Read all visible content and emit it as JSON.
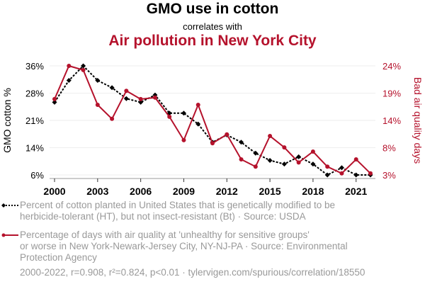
{
  "header": {
    "title": "GMO use in cotton",
    "subtitle": "correlates with",
    "title2": "Air pollution in New York City"
  },
  "colors": {
    "series1": "#000000",
    "series2": "#b5122c",
    "grid": "#eeeeee",
    "legend_text": "#999999"
  },
  "legend": {
    "series1": "Percent of cotton planted in United States that is genetically modified to be herbicide-tolerant (HT), but not insect-resistant (Bt) · Source: USDA",
    "series1_lines": [
      "Percent of cotton planted in United States that is genetically modified to be",
      "herbicide-tolerant (HT), but not insect-resistant (Bt) · Source: USDA"
    ],
    "series2_lines": [
      "Percentage of days with air quality at 'unhealthy for sensitive groups'",
      "or worse in New York-Newark-Jersey City, NY-NJ-PA · Source: Environmental",
      "Protection Agency"
    ]
  },
  "footer": "2000-2022, r=0.908, r²=0.824, p<0.01 · tylervigen.com/spurious/correlation/18550",
  "chart_data": {
    "type": "line",
    "title": "GMO use in cotton correlates with Air pollution in New York City",
    "x": [
      2000,
      2001,
      2002,
      2003,
      2004,
      2005,
      2006,
      2007,
      2008,
      2009,
      2010,
      2011,
      2012,
      2013,
      2014,
      2015,
      2016,
      2017,
      2018,
      2019,
      2020,
      2021,
      2022
    ],
    "xticks": [
      2000,
      2003,
      2006,
      2009,
      2012,
      2015,
      2018,
      2021
    ],
    "xlim": [
      2000,
      2022
    ],
    "ylabel_left": "GMO cotton %",
    "ylabel_right": "Bad air quality days",
    "ylim_left": [
      6,
      36
    ],
    "ylim_right": [
      3,
      24
    ],
    "yticks_left": [
      "36%",
      "28%",
      "21%",
      "14%",
      "6%"
    ],
    "yticks_right": [
      "24%",
      "19%",
      "14%",
      "8%",
      "3%"
    ],
    "grid": true,
    "series": [
      {
        "name": "Percent of cotton planted in United States that is genetically modified to be herbicide-tolerant (HT), but not insect-resistant (Bt)",
        "axis": "left",
        "style": "dotted",
        "values": [
          26,
          32,
          36,
          32,
          30,
          27,
          26,
          28,
          23,
          23,
          20,
          15,
          17,
          15,
          12,
          10,
          9,
          11,
          9,
          6,
          8,
          6,
          6
        ]
      },
      {
        "name": "Percentage of days with air quality at 'unhealthy for sensitive groups' or worse in New York-Newark-Jersey City, NY-NJ-PA",
        "axis": "right",
        "style": "solid",
        "values": [
          17.6,
          24.0,
          23.2,
          16.5,
          13.8,
          19.2,
          17.6,
          17.9,
          14.2,
          9.7,
          16.5,
          9.1,
          10.8,
          6.0,
          4.6,
          10.5,
          8.3,
          5.4,
          7.5,
          4.6,
          3.3,
          6.0,
          3.3
        ]
      }
    ]
  }
}
